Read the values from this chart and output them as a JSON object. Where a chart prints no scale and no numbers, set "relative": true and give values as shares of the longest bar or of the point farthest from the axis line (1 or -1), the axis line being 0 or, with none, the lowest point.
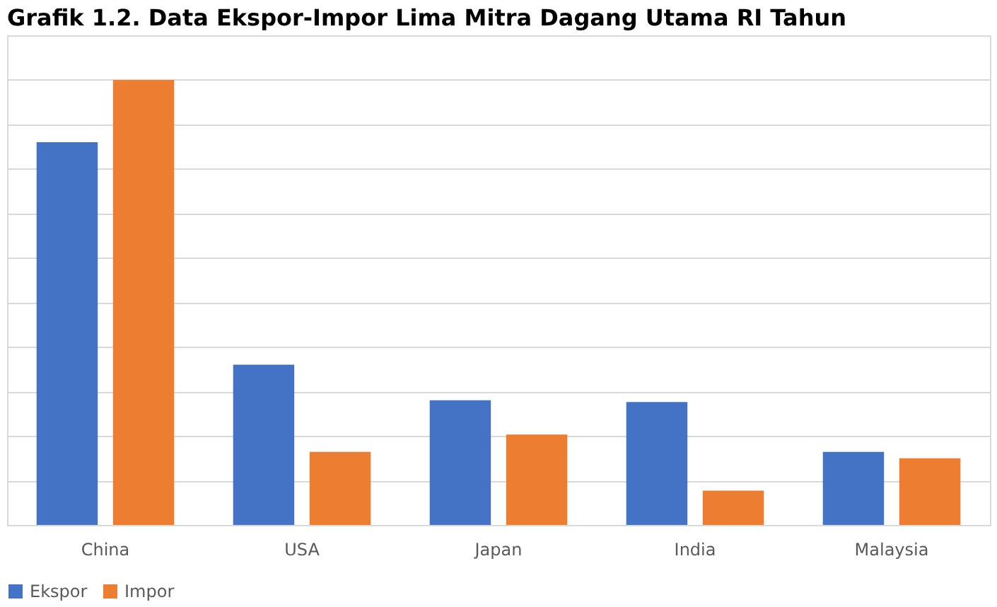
{
  "chart_data": {
    "type": "bar",
    "title": "Grafik 1.2. Data Ekspor-Impor Lima Mitra Dagang Utama RI Tahun",
    "categories": [
      "China",
      "USA",
      "Japan",
      "India",
      "Malaysia"
    ],
    "series": [
      {
        "name": "Ekspor",
        "color": "#4472c4",
        "values": [
          0.86,
          0.36,
          0.28,
          0.276,
          0.164
        ]
      },
      {
        "name": "Impor",
        "color": "#ed7d31",
        "values": [
          1.0,
          0.164,
          0.203,
          0.077,
          0.15
        ]
      }
    ],
    "relative": true,
    "grid": "y",
    "legend": "bottom"
  }
}
